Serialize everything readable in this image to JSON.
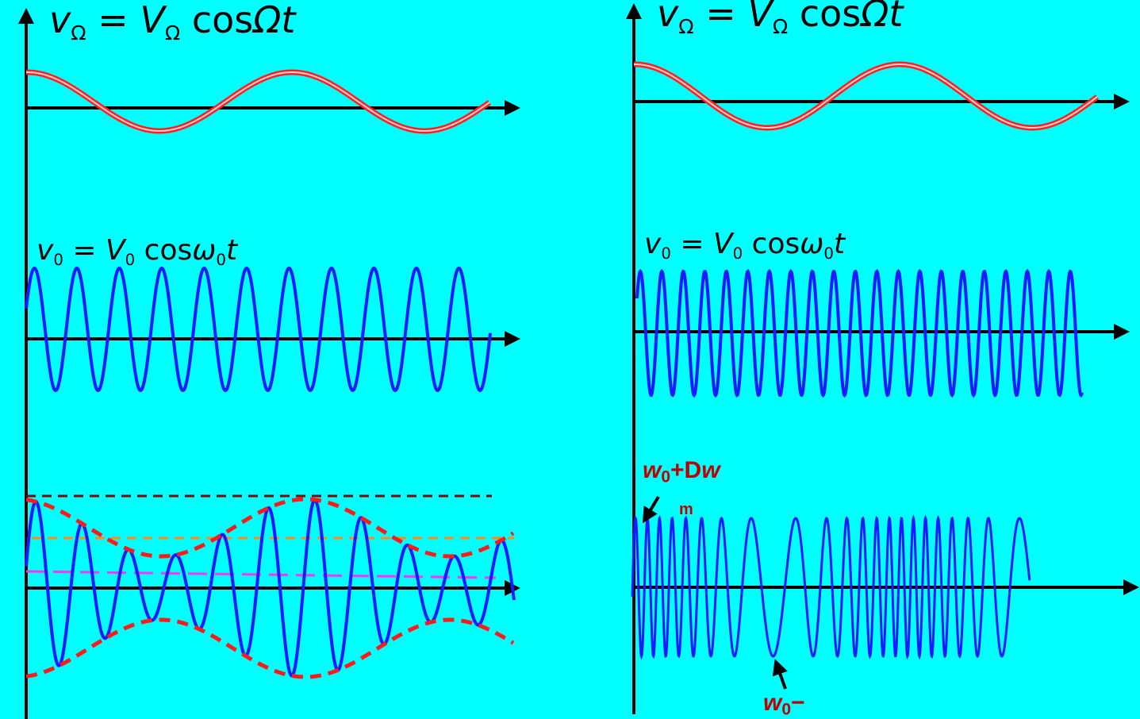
{
  "panels": {
    "left": {
      "modulating_eq": {
        "lhs": "v",
        "lhs_sub": "Ω",
        "rhs_amp": "V",
        "rhs_amp_sub": "Ω",
        "rhs_fn": "cos",
        "rhs_arg": "Ωt"
      },
      "carrier_eq": {
        "lhs": "v",
        "lhs_sub": "0",
        "rhs_amp": "V",
        "rhs_amp_sub": "0",
        "rhs_fn": "cos",
        "rhs_arg": "ω",
        "rhs_arg_sub": "0",
        "rhs_t": "t"
      }
    },
    "right": {
      "modulating_eq": {
        "lhs": "v",
        "lhs_sub": "Ω",
        "rhs_amp": "V",
        "rhs_amp_sub": "Ω",
        "rhs_fn": "cos",
        "rhs_arg": "Ωt"
      },
      "carrier_eq": {
        "lhs": "v",
        "lhs_sub": "0",
        "rhs_amp": "V",
        "rhs_amp_sub": "0",
        "rhs_fn": "cos",
        "rhs_arg": "ω",
        "rhs_arg_sub": "0",
        "rhs_t": "t"
      },
      "fm_max_label": {
        "w": "w",
        "sub": "0",
        "plus": "+D",
        "w2": "w",
        "m": "m"
      },
      "fm_min_label": {
        "w": "w",
        "sub": "0",
        "minus": "−"
      }
    }
  },
  "colors": {
    "background": "#00ffff",
    "axis": "#000000",
    "modulating": "#ff2020",
    "carrier": "#1a1aff",
    "envelope": "#ff1a1a",
    "ref_top": "#8b0000",
    "ref_mid": "#ff8c1a",
    "ref_low": "#ff33ff",
    "label": "#c00000"
  }
}
